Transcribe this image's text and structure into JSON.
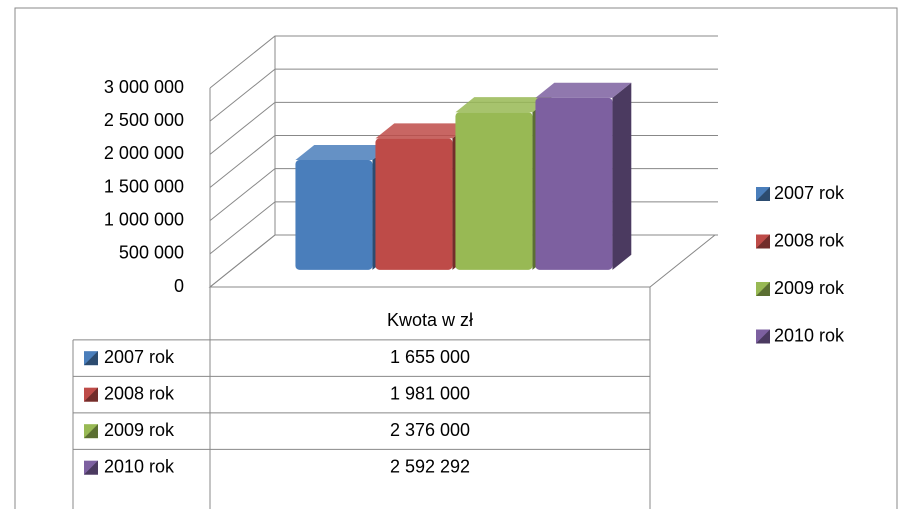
{
  "chart_data": {
    "type": "bar3d",
    "categories": [
      "Kwota w zł"
    ],
    "series": [
      {
        "name": "2007 rok",
        "color": "#4a7ebb",
        "values": [
          1655000
        ],
        "value_labels": [
          "1 655 000"
        ]
      },
      {
        "name": "2008 rok",
        "color": "#be4b48",
        "values": [
          1981000
        ],
        "value_labels": [
          "1 981 000"
        ]
      },
      {
        "name": "2009 rok",
        "color": "#98b954",
        "values": [
          2376000
        ],
        "value_labels": [
          "2 376 000"
        ]
      },
      {
        "name": "2010 rok",
        "color": "#7d60a0",
        "values": [
          2592292
        ],
        "value_labels": [
          "2 592 292"
        ]
      }
    ],
    "ylim": [
      0,
      3000000
    ],
    "yticks": [
      0,
      {
        "value": 500000,
        "label": "500 000"
      },
      {
        "value": 1000000,
        "label": "1 000 000"
      },
      {
        "value": 1500000,
        "label": "1 500 000"
      },
      {
        "value": 2000000,
        "label": "2 000 000"
      },
      {
        "value": 2500000,
        "label": "2 500 000"
      },
      {
        "value": 3000000,
        "label": "3 000 000"
      }
    ],
    "grid": true,
    "legend": "right",
    "data_table": true
  }
}
